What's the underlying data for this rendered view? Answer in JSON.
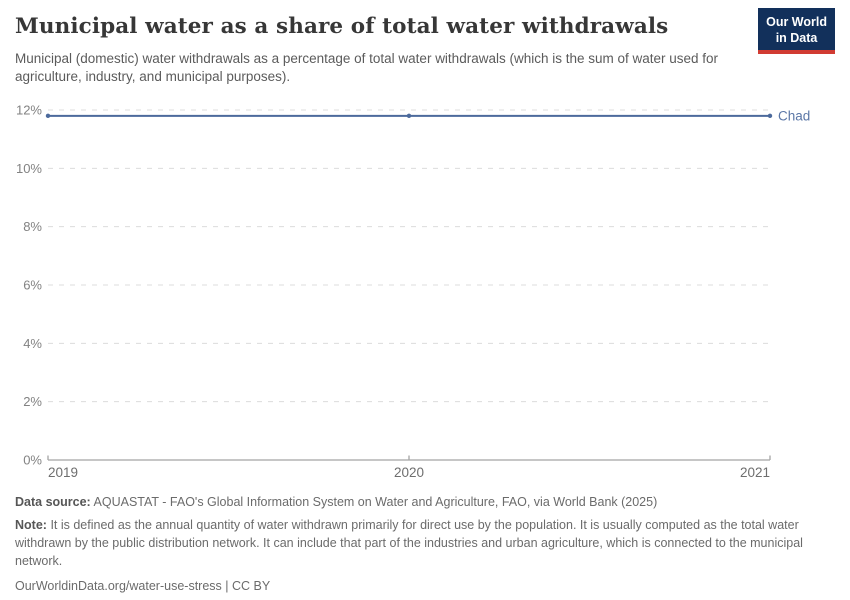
{
  "header": {
    "title": "Municipal water as a share of total water withdrawals",
    "subtitle": "Municipal (domestic) water withdrawals as a percentage of total water withdrawals (which is the sum of water used for agriculture, industry, and municipal purposes).",
    "logo": {
      "line1": "Our World",
      "line2": "in Data",
      "bg_color": "#12305b",
      "accent_color": "#d13b32"
    }
  },
  "chart_data": {
    "type": "line",
    "title": "Municipal water as a share of total water withdrawals",
    "x": [
      2019,
      2020,
      2021
    ],
    "series": [
      {
        "name": "Chad",
        "color": "#4c6a9c",
        "values": [
          11.8,
          11.8,
          11.8
        ]
      }
    ],
    "ylim": [
      0,
      12
    ],
    "ytick_step": 2,
    "ytick_labels": [
      "0%",
      "2%",
      "4%",
      "6%",
      "8%",
      "10%",
      "12%"
    ],
    "xtick_labels": [
      "2019",
      "2020",
      "2021"
    ],
    "grid": "horizontal-dashed",
    "legend_position": "line-end-label",
    "style": {
      "grid_color": "#dcdcdc",
      "axis_color": "#a5a5a5",
      "ytick_label_color": "#828282",
      "xtick_label_color": "#6e6e6e",
      "entity_label_color": "#5b77a7"
    }
  },
  "footer": {
    "data_source_label": "Data source:",
    "data_source": "AQUASTAT - FAO's Global Information System on Water and Agriculture, FAO, via World Bank (2025)",
    "note_label": "Note:",
    "note": "It is defined as the annual quantity of water withdrawn primarily for direct use by the population. It is usually computed as the total water withdrawn by the public distribution network. It can include that part of the industries and urban agriculture, which is connected to the municipal network.",
    "url": "OurWorldinData.org/water-use-stress | CC BY"
  }
}
